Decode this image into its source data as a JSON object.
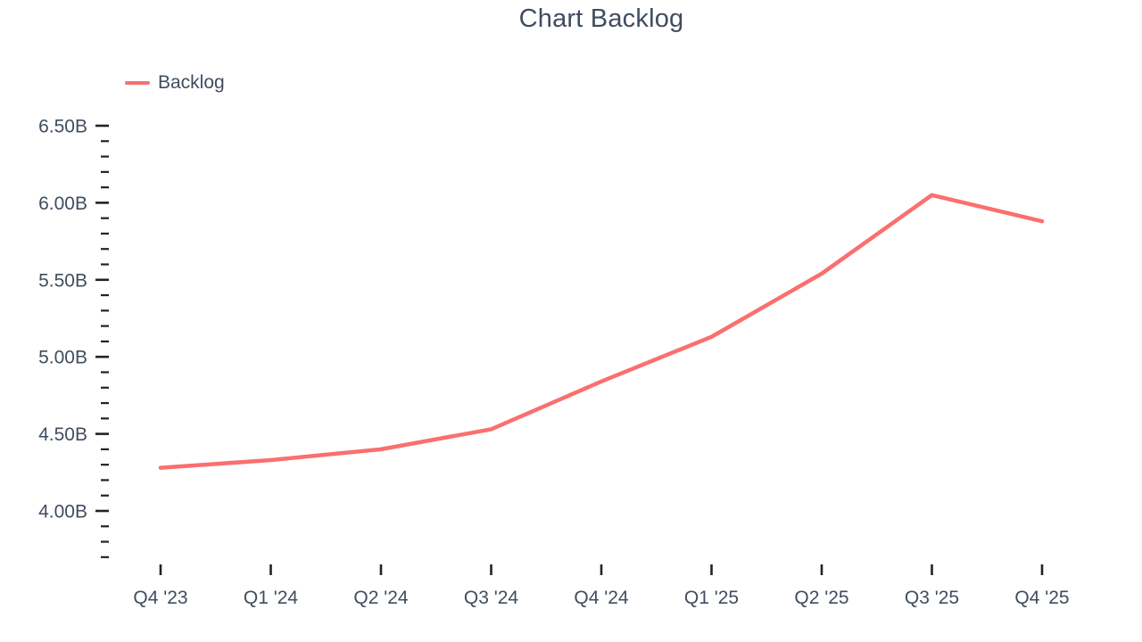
{
  "header": {
    "title": "Chart Backlog"
  },
  "chart_data": {
    "type": "line",
    "title": "Chart Backlog",
    "categories": [
      "Q4 '23",
      "Q1 '24",
      "Q2 '24",
      "Q3 '24",
      "Q4 '24",
      "Q1 '25",
      "Q2 '25",
      "Q3 '25",
      "Q4 '25"
    ],
    "series": [
      {
        "name": "Backlog",
        "color": "#fa6f6f",
        "values": [
          4.28,
          4.33,
          4.4,
          4.53,
          4.84,
          5.13,
          5.54,
          6.05,
          5.88
        ]
      }
    ],
    "xlabel": "",
    "ylabel": "",
    "ylim": [
      3.7,
      6.5
    ],
    "y_major_ticks": [
      {
        "value": 6.5,
        "label": "6.50B"
      },
      {
        "value": 6.0,
        "label": "6.00B"
      },
      {
        "value": 5.5,
        "label": "5.50B"
      },
      {
        "value": 5.0,
        "label": "5.00B"
      },
      {
        "value": 4.5,
        "label": "4.50B"
      },
      {
        "value": 4.0,
        "label": "4.00B"
      }
    ],
    "y_minor_step": 0.1,
    "grid": false,
    "legend_position": "top-left",
    "axis_tick_color": "#1f2329",
    "text_color": "#404d5e",
    "background": "#ffffff"
  }
}
